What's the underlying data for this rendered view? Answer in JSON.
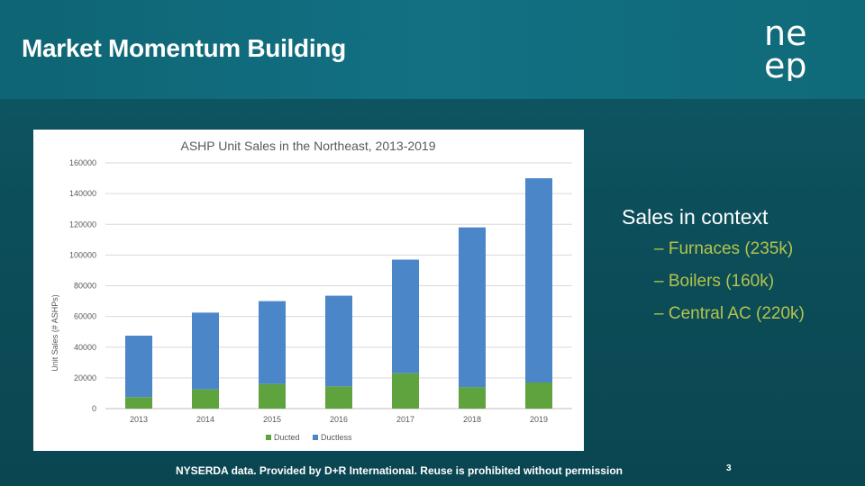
{
  "slide": {
    "title": "Market Momentum Building",
    "logo_text": [
      "ne",
      "ep"
    ],
    "side_heading": "Sales in context",
    "side_items": [
      "– Furnaces (235k)",
      "– Boilers (160k)",
      "– Central AC (220k)"
    ],
    "footer_note": "NYSERDA data. Provided by D+R International. Reuse is prohibited without permission",
    "page_number": "3"
  },
  "colors": {
    "ducted": "#5ea33d",
    "ductless": "#4a86c8",
    "accent_text": "#b5c34a"
  },
  "chart_data": {
    "type": "bar",
    "stacked": true,
    "title": "ASHP Unit Sales in the Northeast, 2013-2019",
    "xlabel": "",
    "ylabel": "Unit Sales (# ASHPs)",
    "ylim": [
      0,
      160000
    ],
    "yticks": [
      "0",
      "20000",
      "40000",
      "60000",
      "80000",
      "100000",
      "120000",
      "140000",
      "160000"
    ],
    "categories": [
      "2013",
      "2014",
      "2015",
      "2016",
      "2017",
      "2018",
      "2019"
    ],
    "series": [
      {
        "name": "Ducted",
        "values": [
          7500,
          12500,
          16000,
          14500,
          23000,
          14000,
          17000
        ]
      },
      {
        "name": "Ductless",
        "values": [
          40000,
          50000,
          54000,
          59000,
          74000,
          104000,
          133000
        ]
      }
    ],
    "grid": true,
    "legend": "bottom"
  }
}
